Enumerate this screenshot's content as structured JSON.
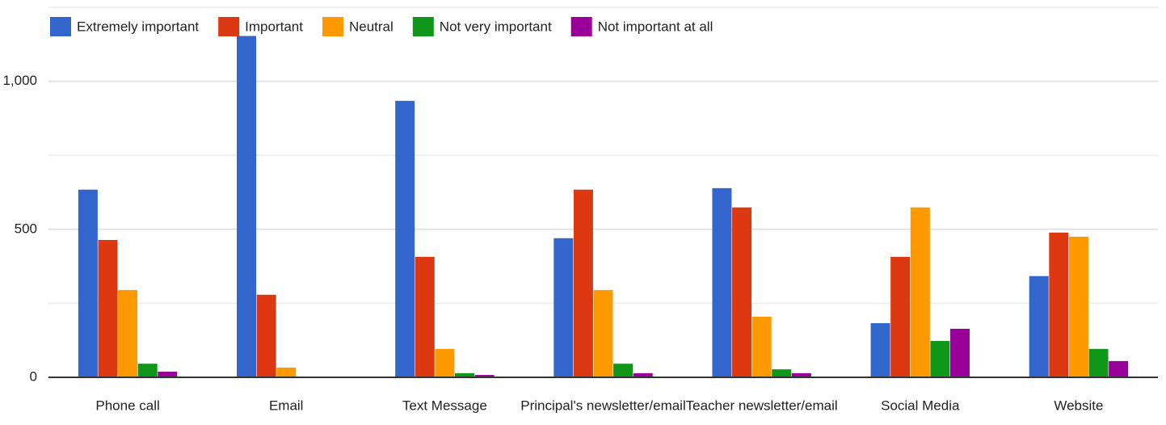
{
  "chart_data": {
    "type": "bar",
    "categories": [
      "Phone call",
      "Email",
      "Text Message",
      "Principal's newsletter/email",
      "Teacher newsletter/email",
      "Social Media",
      "Website"
    ],
    "series": [
      {
        "name": "Extremely important",
        "color": "#3366cc",
        "values": [
          634,
          1153,
          934,
          470,
          639,
          183,
          342
        ]
      },
      {
        "name": "Important",
        "color": "#dc3912",
        "values": [
          464,
          279,
          407,
          634,
          574,
          407,
          489
        ]
      },
      {
        "name": "Neutral",
        "color": "#ff9900",
        "values": [
          295,
          33,
          96,
          295,
          205,
          574,
          475
        ]
      },
      {
        "name": "Not very important",
        "color": "#109618",
        "values": [
          46,
          0,
          14,
          46,
          27,
          123,
          96
        ]
      },
      {
        "name": "Not important at all",
        "color": "#990099",
        "values": [
          19,
          0,
          8,
          14,
          14,
          164,
          55
        ]
      }
    ],
    "ylim": [
      0,
      1250
    ],
    "yticks": [
      0,
      500,
      {
        "value": 1000,
        "label": "1,000"
      }
    ],
    "minor_yticks": [
      250,
      750,
      1250
    ],
    "grid": true,
    "legend": "top"
  }
}
